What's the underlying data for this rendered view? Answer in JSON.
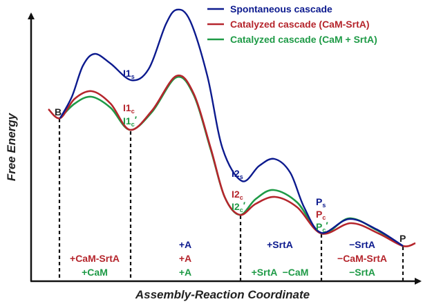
{
  "colors": {
    "spontaneous": "#0c1a8e",
    "catalyzed_fused": "#b5252c",
    "catalyzed_separate": "#1e9a46",
    "axis": "#111111"
  },
  "axes": {
    "y_title": "Free Energy",
    "x_title": "Assembly-Reaction Coordinate"
  },
  "legend": [
    {
      "label": "Spontaneous cascade",
      "series": "spontaneous"
    },
    {
      "label": "Catalyzed cascade (CaM-SrtA)",
      "series": "catalyzed_fused"
    },
    {
      "label": "Catalyzed cascade (CaM + SrtA)",
      "series": "catalyzed_separate"
    }
  ],
  "states": {
    "B": "B",
    "I1s": {
      "main": "I1",
      "sub": "s",
      "prime": ""
    },
    "I1c": {
      "main": "I1",
      "sub": "c",
      "prime": ""
    },
    "I1c_prime": {
      "main": "I1",
      "sub": "c",
      "prime": "′"
    },
    "I2s": {
      "main": "I2",
      "sub": "s",
      "prime": ""
    },
    "I2c": {
      "main": "I2",
      "sub": "c",
      "prime": ""
    },
    "I2c_prime": {
      "main": "I2",
      "sub": "c",
      "prime": "′"
    },
    "Ps": {
      "main": "P",
      "sub": "s",
      "prime": ""
    },
    "Pc": {
      "main": "P",
      "sub": "c",
      "prime": ""
    },
    "Pc_prime": {
      "main": "P",
      "sub": "c",
      "prime": "′"
    },
    "P": "P"
  },
  "steps": {
    "step1": {
      "red": "+CaM-SrtA",
      "green": "+CaM"
    },
    "step2": {
      "blue": "+A",
      "red": "+A",
      "green": "+A"
    },
    "step3": {
      "blue": "+SrtA",
      "green": "+SrtA  −CaM"
    },
    "step4": {
      "blue": "−SrtA",
      "red": "−CaM-SrtA",
      "green": "−SrtA"
    }
  }
}
